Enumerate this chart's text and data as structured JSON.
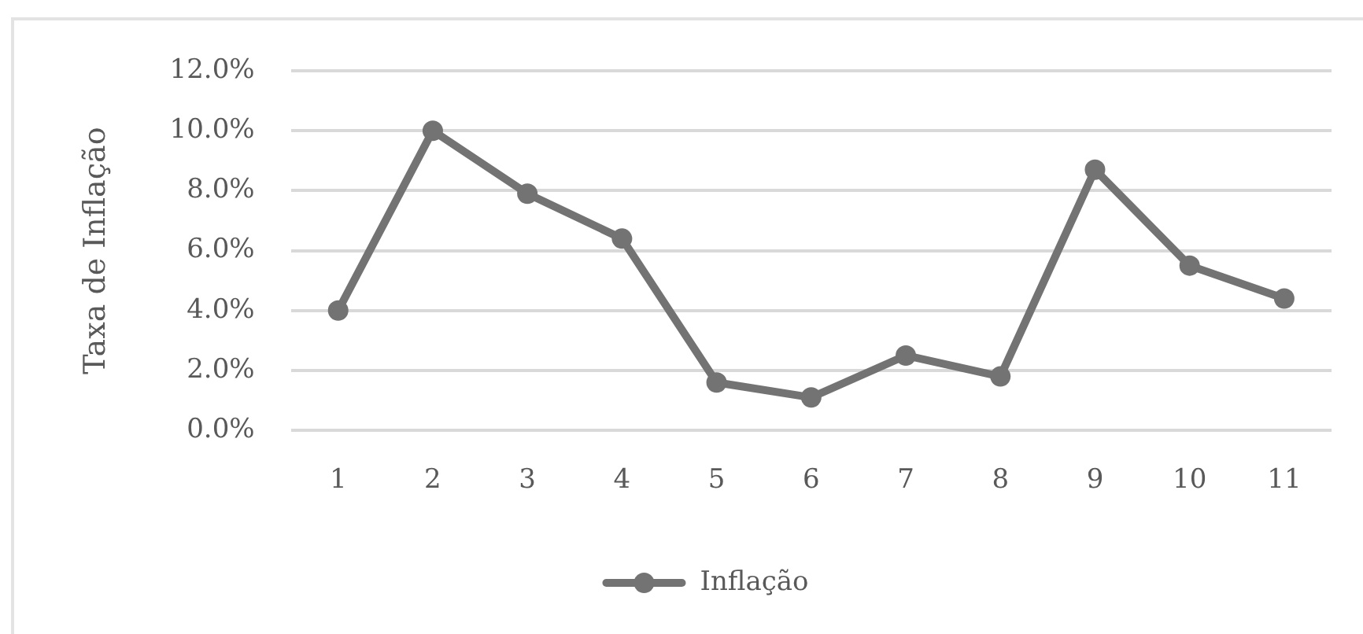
{
  "chart_data": {
    "type": "line",
    "ylabel": "Taxa de Inflação",
    "categories": [
      "1",
      "2",
      "3",
      "4",
      "5",
      "6",
      "7",
      "8",
      "9",
      "10",
      "11"
    ],
    "series": [
      {
        "name": "Inflação",
        "color": "#737373",
        "values": [
          4.0,
          10.0,
          7.9,
          6.4,
          1.6,
          1.1,
          2.5,
          1.8,
          8.7,
          5.5,
          4.4
        ]
      }
    ],
    "ylim": [
      0,
      12
    ],
    "yticks": [
      {
        "value": 0,
        "label": "0.0%"
      },
      {
        "value": 2,
        "label": "2.0%"
      },
      {
        "value": 4,
        "label": "4.0%"
      },
      {
        "value": 6,
        "label": "6.0%"
      },
      {
        "value": 8,
        "label": "8.0%"
      },
      {
        "value": 10,
        "label": "10.0%"
      },
      {
        "value": 12,
        "label": "12.0%"
      }
    ],
    "grid": "y",
    "legend": "bottom",
    "marker": "circle",
    "line_style": "solid"
  }
}
